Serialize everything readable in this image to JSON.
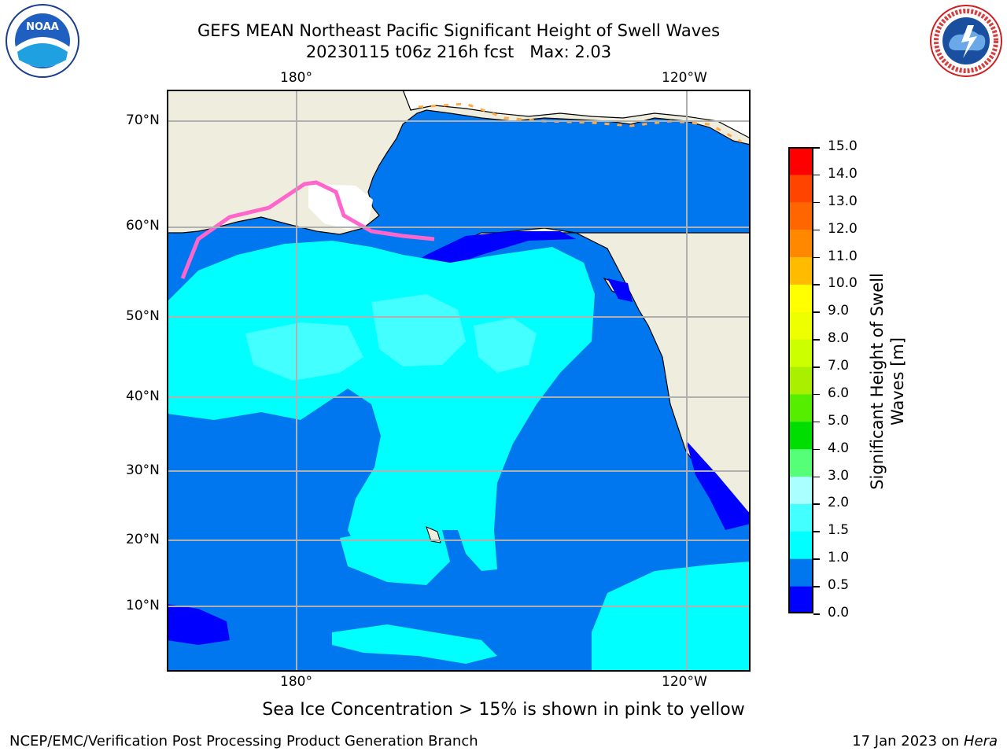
{
  "header": {
    "title_line1": "GEFS MEAN Northeast Pacific Significant Height of Swell Waves",
    "title_line2": "20230115 t06z 216h fcst   Max: 2.03"
  },
  "map": {
    "lon_labels_top": [
      "180°",
      "120°W"
    ],
    "lon_labels_bottom": [
      "180°",
      "120°W"
    ],
    "lat_labels": [
      "70°N",
      "60°N",
      "50°N",
      "40°N",
      "30°N",
      "20°N",
      "10°N"
    ],
    "colors": {
      "land": "#efedde",
      "ocean_0_0_5": "#0000ff",
      "ocean_0_5_1": "#0077ee",
      "ocean_1_1_5": "#00ffff",
      "ocean_1_5_2": "#44ffff",
      "grid": "#b0b0b0",
      "sea_ice": "#ff66cc"
    }
  },
  "colorbar": {
    "tick_labels": [
      "15.0",
      "14.0",
      "13.0",
      "12.0",
      "11.0",
      "10.0",
      "9.0",
      "8.0",
      "7.0",
      "6.0",
      "5.0",
      "4.0",
      "3.0",
      "2.0",
      "1.5",
      "1.0",
      "0.5",
      "0.0"
    ],
    "colors_bottom_to_top": [
      "#0000ff",
      "#0077ee",
      "#00ffff",
      "#44ffff",
      "#aaffff",
      "#55ff77",
      "#00dd00",
      "#55ee00",
      "#aaee00",
      "#ccff00",
      "#eeff00",
      "#ffff00",
      "#ffbb00",
      "#ff8800",
      "#ff6600",
      "#ff4400",
      "#ff0000"
    ],
    "label_line1": "Significant Height of Swell",
    "label_line2": "Waves [m]"
  },
  "note": "Sea Ice Concentration > 15% is shown in pink to yellow",
  "footer": {
    "left": "NCEP/EMC/Verification Post Processing Product Generation Branch",
    "right_date": "17 Jan 2023 on ",
    "right_machine": "Hera"
  },
  "logos": {
    "noaa_text": "NOAA",
    "nws_text": "NATIONAL WEATHER SERVICE"
  }
}
